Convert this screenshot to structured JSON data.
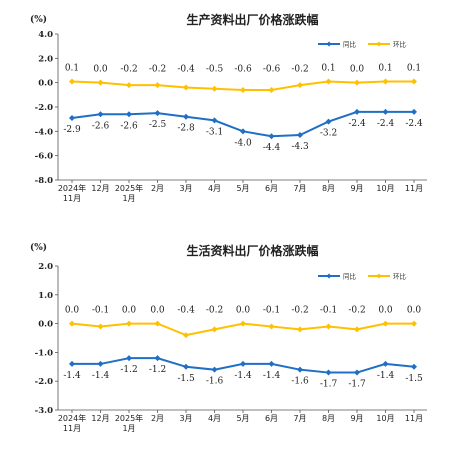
{
  "colors": {
    "yoy": "#1f6fc6",
    "mom": "#ffc000"
  },
  "chart_data": [
    {
      "type": "line",
      "title": "生产资料出厂价格涨跌幅",
      "unit_label": "(%)",
      "categories": [
        "2024年\n11月",
        "12月",
        "2025年\n1月",
        "2月",
        "3月",
        "4月",
        "5月",
        "6月",
        "7月",
        "8月",
        "9月",
        "10月",
        "11月"
      ],
      "series": [
        {
          "name": "同比",
          "values": [
            -2.9,
            -2.6,
            -2.6,
            -2.5,
            -2.8,
            -3.1,
            -4.0,
            -4.4,
            -4.3,
            -3.2,
            -2.4,
            -2.4,
            -2.4
          ],
          "labels": [
            "-2.9",
            "-2.6",
            "-2.6",
            "-2.5",
            "-2.8",
            "-3.1",
            "-4.0",
            "-4.4",
            "-4.3",
            "-3.2",
            "-2.4",
            "-2.4",
            "-2.4"
          ]
        },
        {
          "name": "环比",
          "values": [
            0.1,
            0.0,
            -0.2,
            -0.2,
            -0.4,
            -0.5,
            -0.6,
            -0.6,
            -0.2,
            0.1,
            0.0,
            0.1,
            0.1
          ],
          "labels": [
            "0.1",
            "0.0",
            "-0.2",
            "-0.2",
            "-0.4",
            "-0.5",
            "-0.6",
            "-0.6",
            "-0.2",
            "0.1",
            "0.0",
            "0.1",
            "0.1"
          ]
        }
      ],
      "yticks": [
        "4.0",
        "2.0",
        "0.0",
        "-2.0",
        "-4.0",
        "-6.0",
        "-8.0"
      ],
      "ylim": [
        -8.0,
        4.0
      ],
      "grid": false,
      "legend_position": "top-right"
    },
    {
      "type": "line",
      "title": "生活资料出厂价格涨跌幅",
      "unit_label": "(%)",
      "categories": [
        "2024年\n11月",
        "12月",
        "2025年\n1月",
        "2月",
        "3月",
        "4月",
        "5月",
        "6月",
        "7月",
        "8月",
        "9月",
        "10月",
        "11月"
      ],
      "series": [
        {
          "name": "同比",
          "values": [
            -1.4,
            -1.4,
            -1.2,
            -1.2,
            -1.5,
            -1.6,
            -1.4,
            -1.4,
            -1.6,
            -1.7,
            -1.7,
            -1.4,
            -1.5
          ],
          "labels": [
            "-1.4",
            "-1.4",
            "-1.2",
            "-1.2",
            "-1.5",
            "-1.6",
            "-1.4",
            "-1.4",
            "-1.6",
            "-1.7",
            "-1.7",
            "-1.4",
            "-1.5"
          ]
        },
        {
          "name": "环比",
          "values": [
            0.0,
            -0.1,
            0.0,
            0.0,
            -0.4,
            -0.2,
            0.0,
            -0.1,
            -0.2,
            -0.1,
            -0.2,
            0.0,
            0.0
          ],
          "labels": [
            "0.0",
            "-0.1",
            "0.0",
            "0.0",
            "-0.4",
            "-0.2",
            "0.0",
            "-0.1",
            "-0.2",
            "-0.1",
            "-0.2",
            "0.0",
            "0.0"
          ]
        }
      ],
      "yticks": [
        "2.0",
        "1.0",
        "0.0",
        "-1.0",
        "-2.0",
        "-3.0"
      ],
      "ylim": [
        -3.0,
        2.0
      ],
      "grid": false,
      "legend_position": "top-right"
    }
  ]
}
